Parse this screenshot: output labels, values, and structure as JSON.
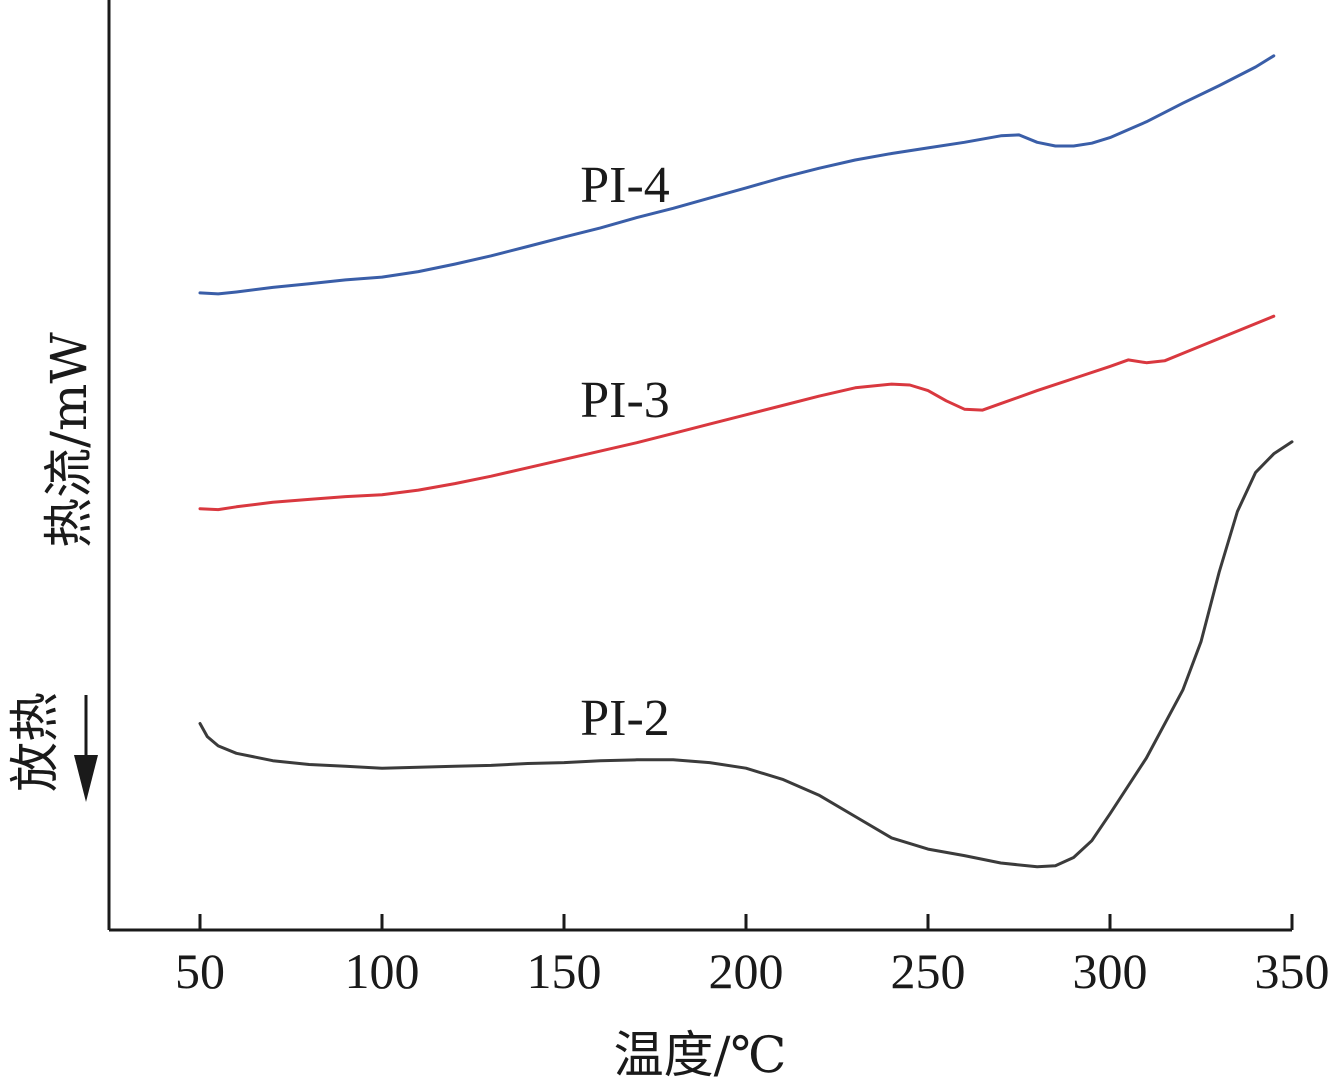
{
  "chart_data": {
    "type": "line",
    "xlabel": "温度/℃",
    "ylabel": "热流/mW",
    "annotation": "放热",
    "xlim": [
      25,
      350
    ],
    "ylim": [
      0,
      100
    ],
    "x_ticks": [
      50,
      100,
      150,
      200,
      250,
      300,
      350
    ],
    "grid": false,
    "series": [
      {
        "name": "PI-4",
        "color": "#3a5ea8",
        "points": [
          [
            50,
            68.5
          ],
          [
            55,
            68.4
          ],
          [
            60,
            68.6
          ],
          [
            70,
            69.1
          ],
          [
            80,
            69.5
          ],
          [
            90,
            69.9
          ],
          [
            100,
            70.2
          ],
          [
            110,
            70.8
          ],
          [
            120,
            71.6
          ],
          [
            130,
            72.5
          ],
          [
            140,
            73.5
          ],
          [
            150,
            74.5
          ],
          [
            160,
            75.5
          ],
          [
            170,
            76.6
          ],
          [
            180,
            77.6
          ],
          [
            190,
            78.7
          ],
          [
            200,
            79.8
          ],
          [
            210,
            80.9
          ],
          [
            220,
            81.9
          ],
          [
            230,
            82.8
          ],
          [
            240,
            83.5
          ],
          [
            250,
            84.1
          ],
          [
            260,
            84.7
          ],
          [
            270,
            85.4
          ],
          [
            275,
            85.5
          ],
          [
            280,
            84.7
          ],
          [
            285,
            84.3
          ],
          [
            290,
            84.3
          ],
          [
            295,
            84.6
          ],
          [
            300,
            85.2
          ],
          [
            310,
            86.9
          ],
          [
            320,
            88.9
          ],
          [
            330,
            90.8
          ],
          [
            340,
            92.8
          ],
          [
            345,
            94.0
          ]
        ]
      },
      {
        "name": "PI-3",
        "color": "#d9383f",
        "points": [
          [
            50,
            45.3
          ],
          [
            55,
            45.2
          ],
          [
            60,
            45.5
          ],
          [
            70,
            46.0
          ],
          [
            80,
            46.3
          ],
          [
            90,
            46.6
          ],
          [
            100,
            46.8
          ],
          [
            110,
            47.3
          ],
          [
            120,
            48.0
          ],
          [
            130,
            48.8
          ],
          [
            140,
            49.7
          ],
          [
            150,
            50.6
          ],
          [
            160,
            51.5
          ],
          [
            170,
            52.4
          ],
          [
            180,
            53.4
          ],
          [
            190,
            54.4
          ],
          [
            200,
            55.4
          ],
          [
            210,
            56.4
          ],
          [
            220,
            57.4
          ],
          [
            230,
            58.3
          ],
          [
            240,
            58.7
          ],
          [
            245,
            58.6
          ],
          [
            250,
            58.0
          ],
          [
            255,
            56.9
          ],
          [
            260,
            56.0
          ],
          [
            265,
            55.9
          ],
          [
            270,
            56.6
          ],
          [
            280,
            58.0
          ],
          [
            290,
            59.3
          ],
          [
            300,
            60.6
          ],
          [
            305,
            61.3
          ],
          [
            310,
            61.0
          ],
          [
            315,
            61.2
          ],
          [
            320,
            62.0
          ],
          [
            330,
            63.6
          ],
          [
            345,
            66.0
          ]
        ]
      },
      {
        "name": "PI-2",
        "color": "#3b3b3b",
        "points": [
          [
            50,
            22.2
          ],
          [
            52,
            20.8
          ],
          [
            55,
            19.8
          ],
          [
            60,
            19.0
          ],
          [
            70,
            18.2
          ],
          [
            80,
            17.8
          ],
          [
            90,
            17.6
          ],
          [
            100,
            17.4
          ],
          [
            110,
            17.5
          ],
          [
            120,
            17.6
          ],
          [
            130,
            17.7
          ],
          [
            140,
            17.9
          ],
          [
            150,
            18.0
          ],
          [
            160,
            18.2
          ],
          [
            170,
            18.3
          ],
          [
            180,
            18.3
          ],
          [
            190,
            18.0
          ],
          [
            200,
            17.4
          ],
          [
            210,
            16.2
          ],
          [
            220,
            14.5
          ],
          [
            230,
            12.2
          ],
          [
            240,
            9.9
          ],
          [
            250,
            8.7
          ],
          [
            260,
            8.0
          ],
          [
            270,
            7.2
          ],
          [
            280,
            6.8
          ],
          [
            285,
            6.9
          ],
          [
            290,
            7.8
          ],
          [
            295,
            9.6
          ],
          [
            300,
            12.5
          ],
          [
            310,
            18.5
          ],
          [
            320,
            25.8
          ],
          [
            325,
            31.0
          ],
          [
            330,
            38.5
          ],
          [
            335,
            45.0
          ],
          [
            340,
            49.2
          ],
          [
            345,
            51.2
          ],
          [
            350,
            52.5
          ]
        ]
      }
    ]
  }
}
